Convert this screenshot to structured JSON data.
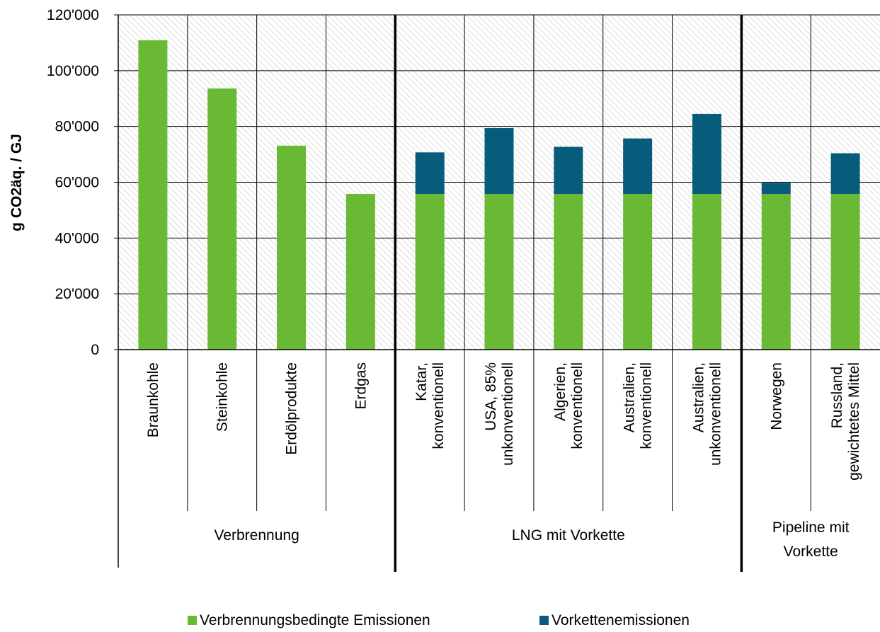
{
  "chart_data": {
    "type": "bar",
    "stacked": true,
    "ylabel": "g CO2äq. / GJ",
    "ylim": [
      0,
      120000
    ],
    "yticks": [
      "0",
      "20'000",
      "40'000",
      "60'000",
      "80'000",
      "100'000",
      "120'000"
    ],
    "ytick_values": [
      0,
      20000,
      40000,
      60000,
      80000,
      100000,
      120000
    ],
    "grid": true,
    "legend_position": "bottom",
    "categories": [
      [
        "Braunkohle"
      ],
      [
        "Steinkohle"
      ],
      [
        "Erdölprodukte"
      ],
      [
        "Erdgas"
      ],
      [
        "Katar,",
        "konventionell"
      ],
      [
        "USA, 85%",
        "unkonventionell"
      ],
      [
        "Algerien,",
        "konventionell"
      ],
      [
        "Australien,",
        "konventionell"
      ],
      [
        "Australien,",
        "unkonventionell"
      ],
      [
        "Norwegen"
      ],
      [
        "Russland,",
        "gewichtetes Mittel"
      ]
    ],
    "groups": [
      {
        "label": [
          "Verbrennung"
        ],
        "start": 0,
        "end": 4
      },
      {
        "label": [
          "LNG mit Vorkette"
        ],
        "start": 4,
        "end": 9
      },
      {
        "label": [
          "Pipeline mit",
          "Vorkette"
        ],
        "start": 9,
        "end": 11
      }
    ],
    "series": [
      {
        "name": "Verbrennungsbedingte Emissionen",
        "color": "#6ab934",
        "values": [
          110900,
          93600,
          73100,
          55800,
          55800,
          55800,
          55800,
          55800,
          55800,
          55800,
          55800
        ]
      },
      {
        "name": "Vorkettenemissionen",
        "color": "#075c7c",
        "values": [
          0,
          0,
          0,
          0,
          14900,
          23600,
          16900,
          19900,
          28700,
          4000,
          14600
        ]
      }
    ]
  }
}
